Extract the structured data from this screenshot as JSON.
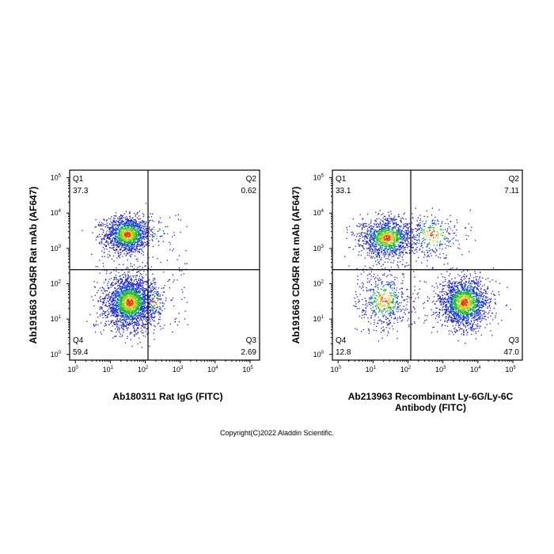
{
  "chart_data": [
    {
      "type": "scatter",
      "subtype": "flow-cytometry-density-dot-plot",
      "xlabel": "Ab180311 Rat IgG (FITC)",
      "ylabel": "Ab191663 CD45R Rat mAb (AF647)",
      "x_scale": "log",
      "y_scale": "log",
      "xlim": [
        1,
        100000
      ],
      "ylim": [
        1,
        100000
      ],
      "x_ticks": [
        {
          "base": "10",
          "exp": "0"
        },
        {
          "base": "10",
          "exp": "1"
        },
        {
          "base": "10",
          "exp": "2"
        },
        {
          "base": "10",
          "exp": "3"
        },
        {
          "base": "10",
          "exp": "4"
        },
        {
          "base": "10",
          "exp": "5"
        }
      ],
      "y_ticks": [
        {
          "base": "10",
          "exp": "0"
        },
        {
          "base": "10",
          "exp": "1"
        },
        {
          "base": "10",
          "exp": "2"
        },
        {
          "base": "10",
          "exp": "3"
        },
        {
          "base": "10",
          "exp": "4"
        },
        {
          "base": "10",
          "exp": "5"
        }
      ],
      "gate_x": 120,
      "gate_y": 250,
      "quadrants": [
        {
          "id": "Q1",
          "value": "37.3",
          "corner": "top-left"
        },
        {
          "id": "Q2",
          "value": "0.62",
          "corner": "top-right"
        },
        {
          "id": "Q3",
          "value": "2.69",
          "corner": "bottom-right"
        },
        {
          "id": "Q4",
          "value": "59.4",
          "corner": "bottom-left"
        }
      ],
      "populations": [
        {
          "x": 30,
          "y": 2500,
          "sx": 0.32,
          "sy": 0.26,
          "weight": 37.3
        },
        {
          "x": 200,
          "y": 3000,
          "sx": 0.15,
          "sy": 0.22,
          "weight": 0.62
        },
        {
          "x": 35,
          "y": 30,
          "sx": 0.34,
          "sy": 0.36,
          "weight": 59.4
        },
        {
          "x": 180,
          "y": 30,
          "sx": 0.14,
          "sy": 0.3,
          "weight": 2.69
        }
      ],
      "grid": false,
      "legend": "none"
    },
    {
      "type": "scatter",
      "subtype": "flow-cytometry-density-dot-plot",
      "xlabel": "Ab213963 Recombinant Ly-6G/Ly-6C Antibody (FITC)",
      "ylabel": "Ab191663 CD45R Rat mAb (AF647)",
      "x_scale": "log",
      "y_scale": "log",
      "xlim": [
        1,
        100000
      ],
      "ylim": [
        1,
        100000
      ],
      "x_ticks": [
        {
          "base": "10",
          "exp": "0"
        },
        {
          "base": "10",
          "exp": "1"
        },
        {
          "base": "10",
          "exp": "2"
        },
        {
          "base": "10",
          "exp": "3"
        },
        {
          "base": "10",
          "exp": "4"
        },
        {
          "base": "10",
          "exp": "5"
        }
      ],
      "y_ticks": [
        {
          "base": "10",
          "exp": "0"
        },
        {
          "base": "10",
          "exp": "1"
        },
        {
          "base": "10",
          "exp": "2"
        },
        {
          "base": "10",
          "exp": "3"
        },
        {
          "base": "10",
          "exp": "4"
        },
        {
          "base": "10",
          "exp": "5"
        }
      ],
      "gate_x": 120,
      "gate_y": 250,
      "quadrants": [
        {
          "id": "Q1",
          "value": "33.1",
          "corner": "top-left"
        },
        {
          "id": "Q2",
          "value": "7.11",
          "corner": "top-right"
        },
        {
          "id": "Q3",
          "value": "47.0",
          "corner": "bottom-right"
        },
        {
          "id": "Q4",
          "value": "12.8",
          "corner": "bottom-left"
        }
      ],
      "populations": [
        {
          "x": 25,
          "y": 2000,
          "sx": 0.38,
          "sy": 0.28,
          "weight": 33.1
        },
        {
          "x": 500,
          "y": 2500,
          "sx": 0.4,
          "sy": 0.3,
          "weight": 7.11
        },
        {
          "x": 4000,
          "y": 30,
          "sx": 0.35,
          "sy": 0.35,
          "weight": 47.0
        },
        {
          "x": 20,
          "y": 35,
          "sx": 0.35,
          "sy": 0.4,
          "weight": 12.8
        }
      ],
      "grid": false,
      "legend": "none"
    }
  ],
  "dot_colors": [
    "#1c1cc8",
    "#0a64e6",
    "#16b43c",
    "#8cd21e",
    "#f0c814",
    "#e63c14"
  ],
  "copyright": "Copyright(C)2022 Aladdin Scientific."
}
